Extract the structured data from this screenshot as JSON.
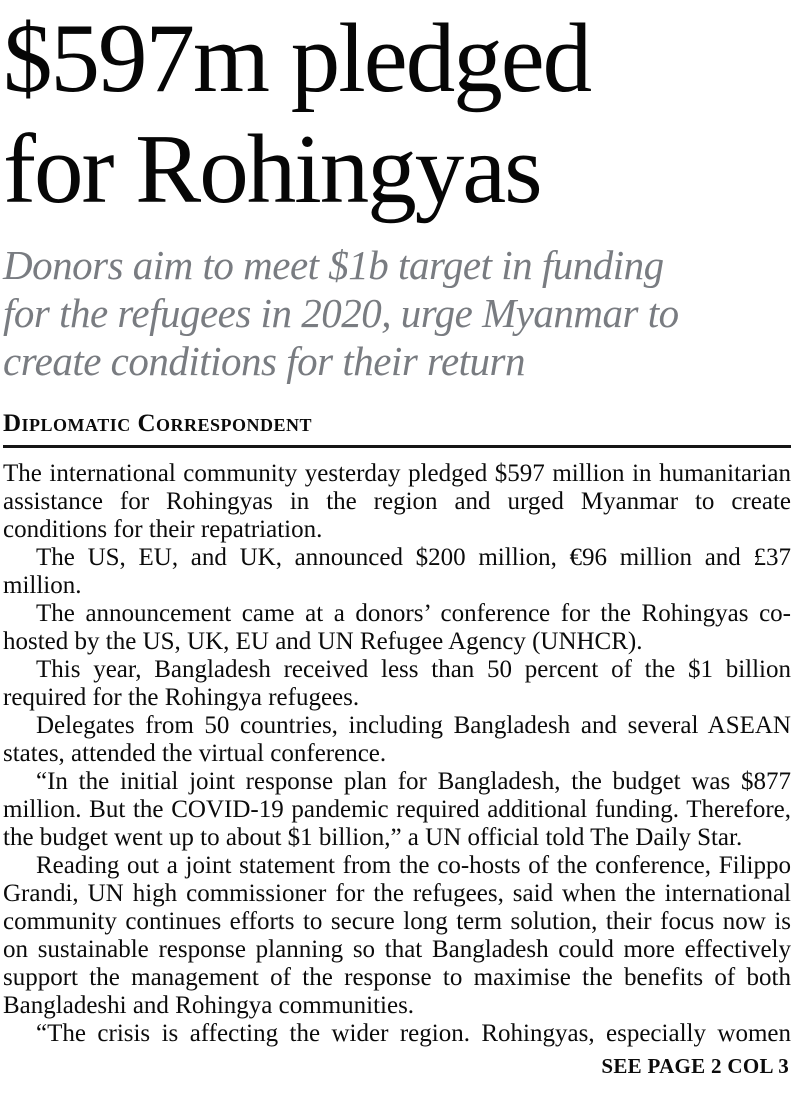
{
  "article": {
    "headline_lines": [
      "$597m pledged",
      "for Rohingyas"
    ],
    "headline_full": "$597m pledged for Rohingyas",
    "subheadline_lines": [
      "Donors aim to meet $1b target in funding",
      "for the refugees in 2020, urge Myanmar to",
      "create conditions for their return"
    ],
    "byline": "Diplomatic Correspondent",
    "paragraphs": [
      "The international community yesterday pledged $597 million in humanitarian assistance for Rohingyas in the region and urged Myanmar to create conditions for their repatriation.",
      "The US, EU, and UK, announced $200 million, €96 million and £37 million.",
      "The announcement came at a donors’ conference for the Rohingyas co-hosted by the US, UK, EU and UN Refugee Agency (UNHCR).",
      "This year, Bangladesh received less than 50 percent of the $1 billion required for the Rohingya refugees.",
      "Delegates from 50 countries, including Bangladesh and several ASEAN states, attended the virtual conference.",
      "“In the initial joint response plan for Bangladesh, the budget was $877 million. But the COVID-19 pandemic required additional funding. Therefore, the budget went up to about $1 billion,” a UN official told The Daily Star.",
      "Reading out a joint statement from the co-hosts of the conference, Filippo Grandi, UN high commissioner for the refugees, said when the international community continues efforts to secure long term solution, their focus now is on sustainable response planning so that Bangladesh could more effectively support the management of the response to maximise the benefits of both Bangladeshi and Rohingya communities.",
      "“The crisis is affecting the wider region. Rohingyas, especially women"
    ],
    "continuation": "SEE PAGE 2 COL 3"
  },
  "colors": {
    "headline": "#060606",
    "subheadline": "#797c81",
    "body": "#0b0b0b",
    "rule": "#151515"
  }
}
